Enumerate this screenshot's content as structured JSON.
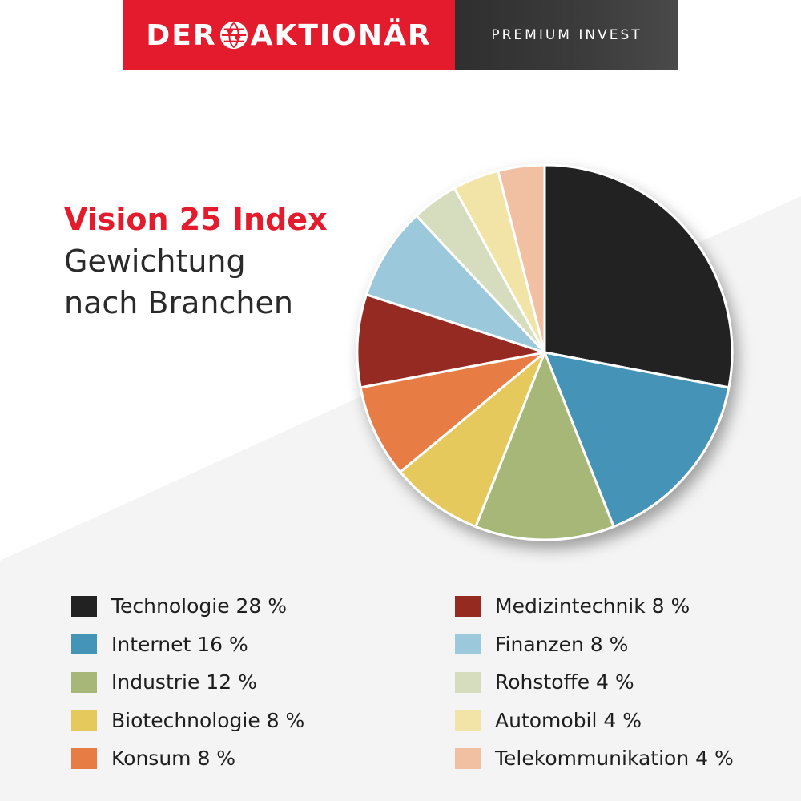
{
  "header": {
    "brand_left": "DER",
    "brand_right": "AKTIONÄR",
    "tagline": "PREMIUM INVEST"
  },
  "title": {
    "line1": "Vision 25 Index",
    "line2": "Gewichtung",
    "line3": "nach Branchen"
  },
  "colors": {
    "brand_red": "#e31b2c",
    "title_dark": "#2a2a2a"
  },
  "chart_data": {
    "type": "pie",
    "title": "Vision 25 Index Gewichtung nach Branchen",
    "unit": "%",
    "legend_placement": "bottom",
    "slices": [
      {
        "label": "Technologie",
        "value": 28,
        "display": "Technologie 28 %",
        "color": "#222222"
      },
      {
        "label": "Internet",
        "value": 16,
        "display": "Internet 16 %",
        "color": "#4494b8"
      },
      {
        "label": "Industrie",
        "value": 12,
        "display": "Industrie 12 %",
        "color": "#a6b778"
      },
      {
        "label": "Biotechnologie",
        "value": 8,
        "display": "Biotechnologie 8 %",
        "color": "#e6c95c"
      },
      {
        "label": "Konsum",
        "value": 8,
        "display": "Konsum 8 %",
        "color": "#e87c45"
      },
      {
        "label": "Medizintechnik",
        "value": 8,
        "display": "Medizintechnik 8 %",
        "color": "#952a20"
      },
      {
        "label": "Finanzen",
        "value": 8,
        "display": "Finanzen 8 %",
        "color": "#9cc8dc"
      },
      {
        "label": "Rohstoffe",
        "value": 4,
        "display": "Rohstoffe 4 %",
        "color": "#d6dcbe"
      },
      {
        "label": "Automobil",
        "value": 4,
        "display": "Automobil 4 %",
        "color": "#f1e4a6"
      },
      {
        "label": "Telekommunikation",
        "value": 4,
        "display": "Telekommunikation 4 %",
        "color": "#f1bfa2"
      }
    ]
  }
}
